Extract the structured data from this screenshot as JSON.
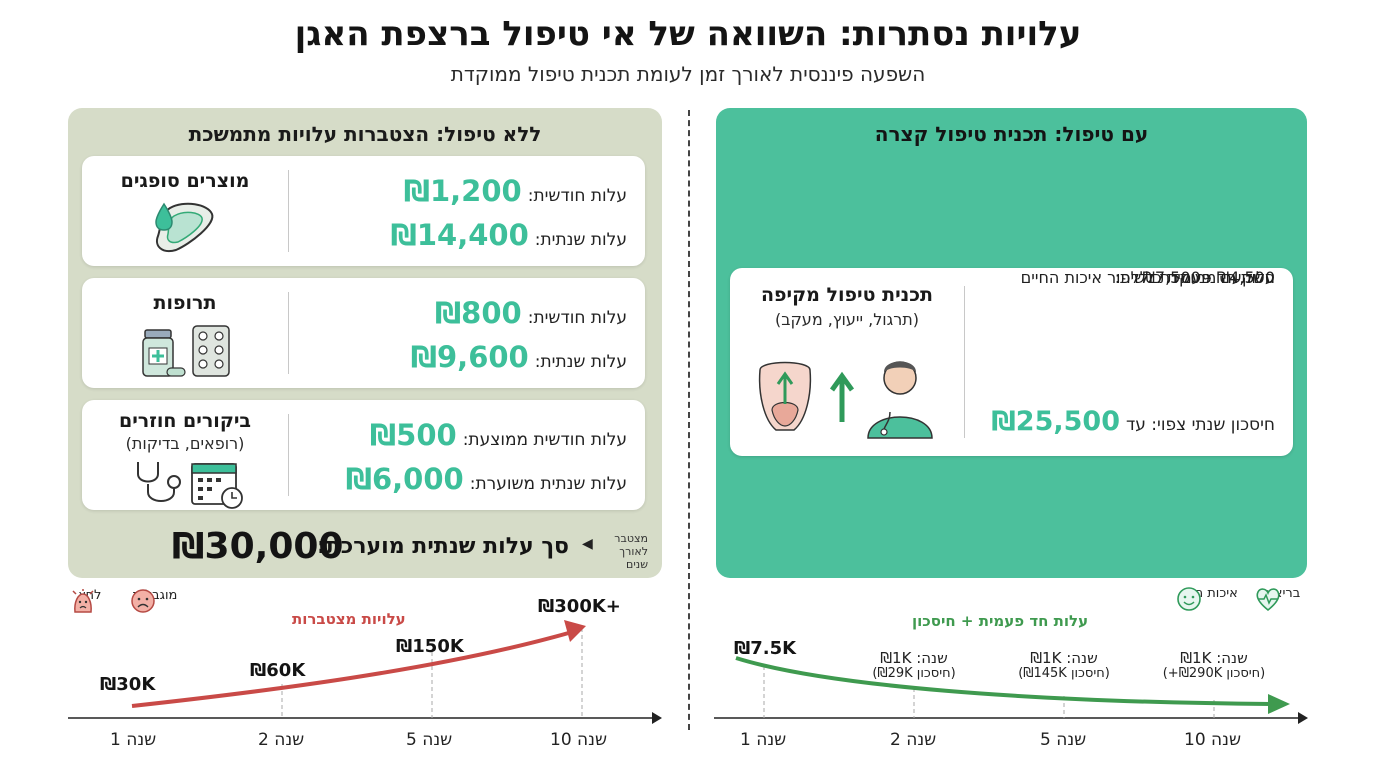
{
  "header": {
    "title": "עלויות נסתרות: השוואה של אי טיפול ברצפת האגן",
    "subtitle": "השפעה פיננסית לאורך זמן לעומת תכנית טיפול ממוקדת"
  },
  "without_treatment": {
    "title": "ללא טיפול: הצטברות עלויות מתמשכת",
    "cards": [
      {
        "name": "מוצרים סופגים",
        "sub": "",
        "icon": "absorbent-pad-icon",
        "row1_label": "עלות חודשית:",
        "row1_value": "₪1,200",
        "row2_label": "עלות שנתית:",
        "row2_value": "₪14,400"
      },
      {
        "name": "תרופות",
        "sub": "",
        "icon": "medication-icon",
        "row1_label": "עלות חודשית:",
        "row1_value": "₪800",
        "row2_label": "עלות שנתית:",
        "row2_value": "₪9,600"
      },
      {
        "name": "ביקורים חוזרים",
        "sub": "(רופאים, בדיקות)",
        "icon": "stethoscope-calendar-icon",
        "row1_label": "עלות חודשית ממוצעת:",
        "row1_value": "₪500",
        "row2_label": "עלות שנתית משוערת:",
        "row2_value": "₪6,000"
      }
    ],
    "total_label": "סך עלות שנתית מוערכת:",
    "total_value": "₪30,000",
    "accum_note_1": "מצטבר",
    "accum_note_2": "לאורך שנים"
  },
  "with_treatment": {
    "title": "עם טיפול: תכנית טיפול קצרה",
    "plan_name": "תכנית טיפול מקיפה",
    "plan_sub": "(תרגול, ייעוץ, מעקב)",
    "one_time_label": "עלות חד פעמית כוללת:",
    "one_time_value": "₪7,500 - ₪4,500",
    "investment_note": "השקעה ממוקדת לשיפור איכות החיים",
    "saving_label": "חיסכון שנתי צפוי: עד",
    "saving_value": "₪25,500"
  },
  "left_trend": {
    "moods": [
      {
        "label": "לחץ",
        "icon": "stress-face-icon"
      },
      {
        "label": "מוגבלות",
        "icon": "sad-face-icon"
      }
    ],
    "title": "עלויות מצטברות",
    "points": [
      "₪30K",
      "₪60K",
      "₪150K",
      "₪300K+"
    ],
    "years": [
      "שנה 1",
      "שנה 2",
      "שנה 5",
      "שנה 10"
    ]
  },
  "right_trend": {
    "moods": [
      {
        "label": "בריאות",
        "icon": "heart-pulse-icon"
      },
      {
        "label": "איכות חיים",
        "icon": "happy-face-icon"
      }
    ],
    "title": "עלות חד פעמית + חיסכון",
    "start_label": "₪7.5K",
    "year_points": [
      {
        "cost": "שנה: ₪1K",
        "saving": "(חיסכון ₪29K)"
      },
      {
        "cost": "שנה: ₪1K",
        "saving": "(חיסכון ₪145K)"
      },
      {
        "cost": "שנה: ₪1K",
        "saving": "(חיסכון ₪290K+)"
      }
    ],
    "years": [
      "שנה 1",
      "שנה 2",
      "שנה 5",
      "שנה 10"
    ]
  },
  "colors": {
    "accent_green": "#3dbf9a",
    "panel_left": "#d6dcc8",
    "panel_right": "#4cc09c",
    "cost_red": "#c94a47",
    "saving_green": "#3f9a4f"
  }
}
